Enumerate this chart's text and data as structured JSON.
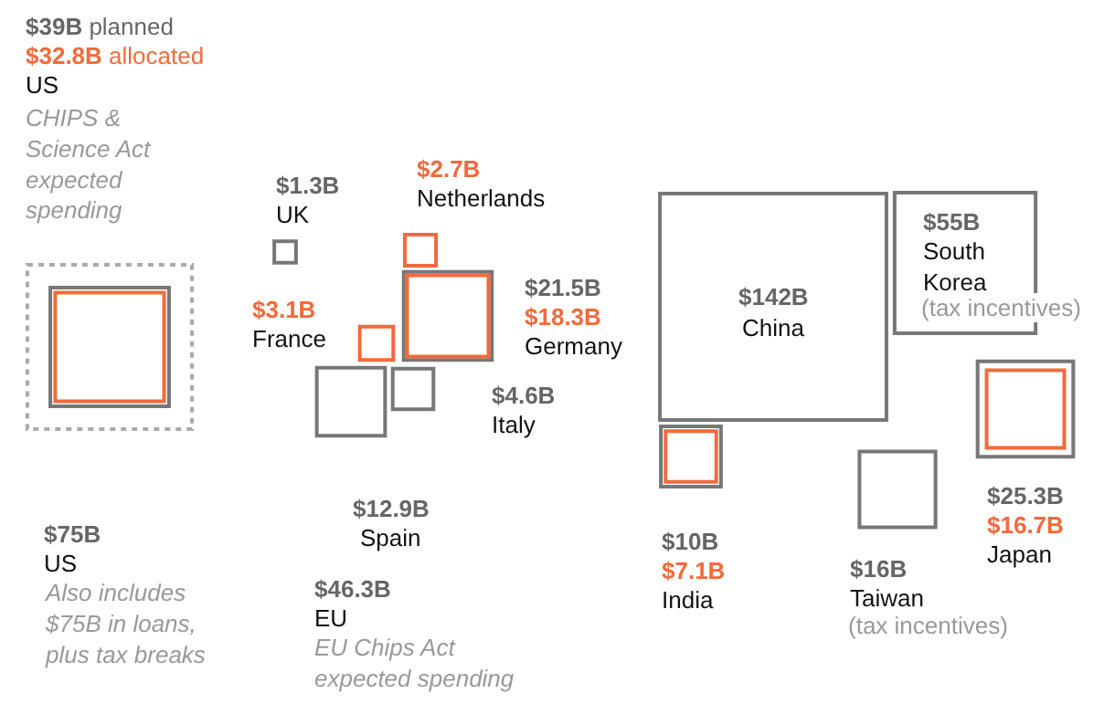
{
  "chart_data": {
    "type": "other",
    "data_labels": true,
    "categories": [
      "US",
      "UK",
      "Netherlands",
      "France",
      "Germany",
      "Italy",
      "Spain",
      "China",
      "South Korea",
      "India",
      "Taiwan",
      "Japan"
    ],
    "series": [
      {
        "color": "#aaaaaa",
        "line_style": "dotted",
        "values": [
          75,
          null,
          null,
          null,
          null,
          null,
          null,
          null,
          null,
          null,
          null,
          null
        ],
        "value_labels": [
          "$75B",
          null,
          null,
          null,
          null,
          null,
          null,
          null,
          null,
          null,
          null,
          null
        ]
      },
      {
        "color": "#777777",
        "values": [
          39,
          1.3,
          null,
          null,
          21.5,
          4.6,
          12.9,
          142,
          55,
          10,
          16,
          25.3
        ],
        "value_labels": [
          "$39B planned",
          "$1.3B",
          null,
          null,
          "$21.5B",
          "$4.6B",
          "$12.9B",
          "$142B",
          "$55B",
          "$10B",
          "$16B",
          "$25.3B"
        ]
      },
      {
        "color": "#f26a3b",
        "values": [
          32.8,
          null,
          2.7,
          3.1,
          18.3,
          null,
          null,
          null,
          null,
          7.1,
          null,
          16.7
        ],
        "value_labels": [
          "$32.8B allocated",
          null,
          "$2.7B",
          "$3.1B",
          "$18.3B",
          null,
          null,
          null,
          null,
          "$7.1B",
          null,
          "$16.7B"
        ]
      }
    ],
    "annotations": [
      "CHIPS & Science Act expected spending",
      "US",
      "Also includes $75B in loans, plus tax breaks",
      "$46.3B",
      "EU",
      "EU Chips Act expected spending",
      "(tax incentives)",
      "(tax incentives)"
    ]
  }
}
